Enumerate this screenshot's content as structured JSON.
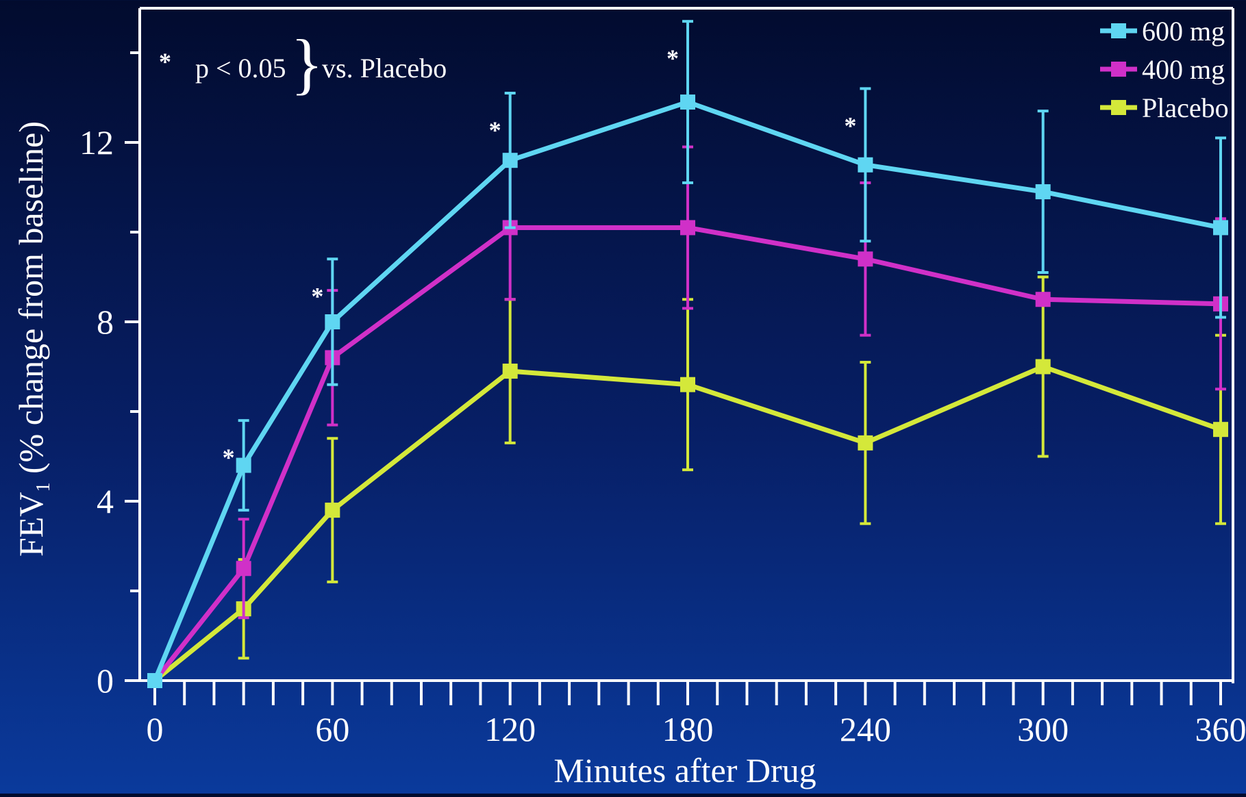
{
  "chart_data": {
    "type": "line",
    "xlabel": "Minutes after Drug",
    "ylabel_main": "FEV",
    "ylabel_sub": "1",
    "ylabel_rest": " (% change from baseline)",
    "xlim": [
      0,
      360
    ],
    "ylim": [
      0,
      15
    ],
    "x_ticks": [
      0,
      60,
      120,
      180,
      240,
      300,
      360
    ],
    "y_ticks": [
      0,
      4,
      8,
      12
    ],
    "x_minor_step": 10,
    "grid": false,
    "legend_position": "top-right",
    "annotation": {
      "star": "*",
      "text": "p < 0.05",
      "brace": "}",
      "suffix": "vs. Placebo"
    },
    "series": [
      {
        "name": "600 mg",
        "color": "#5fd6f2",
        "x": [
          0,
          30,
          60,
          120,
          180,
          240,
          300,
          360
        ],
        "y": [
          0,
          4.8,
          8.0,
          11.6,
          12.9,
          11.5,
          10.9,
          10.1
        ],
        "err": [
          0,
          1.0,
          1.4,
          1.5,
          1.8,
          1.7,
          1.8,
          2.0
        ],
        "significant": [
          false,
          true,
          true,
          true,
          true,
          true,
          false,
          false
        ]
      },
      {
        "name": "400 mg",
        "color": "#d030c8",
        "x": [
          0,
          30,
          60,
          120,
          180,
          240,
          300,
          360
        ],
        "y": [
          0,
          2.5,
          7.2,
          10.1,
          10.1,
          9.4,
          8.5,
          8.4
        ],
        "err": [
          0,
          1.1,
          1.5,
          1.6,
          1.8,
          1.7,
          0,
          1.9
        ],
        "significant": [
          false,
          false,
          false,
          false,
          false,
          false,
          false,
          false
        ]
      },
      {
        "name": "Placebo",
        "color": "#d4e83a",
        "x": [
          0,
          30,
          60,
          120,
          180,
          240,
          300,
          360
        ],
        "y": [
          0,
          1.6,
          3.8,
          6.9,
          6.6,
          5.3,
          7.0,
          5.6
        ],
        "err": [
          0,
          1.1,
          1.6,
          1.6,
          1.9,
          1.8,
          2.0,
          2.1
        ],
        "significant": [
          false,
          false,
          false,
          false,
          false,
          false,
          false,
          false
        ]
      }
    ]
  }
}
